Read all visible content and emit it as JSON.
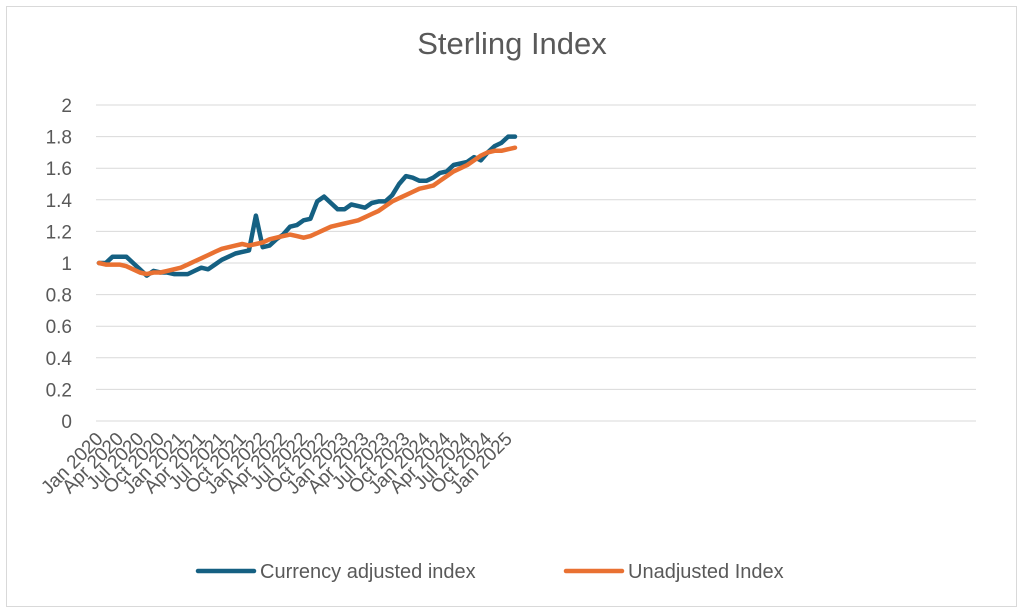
{
  "chart_data": {
    "type": "line",
    "title": "Sterling Index",
    "xlabel": "",
    "ylabel": "",
    "ylim": [
      0,
      2
    ],
    "y_ticks": [
      "0",
      "0.2",
      "0.4",
      "0.6",
      "0.8",
      "1",
      "1.2",
      "1.4",
      "1.6",
      "1.8",
      "2"
    ],
    "grid": "horizontal",
    "legend_position": "bottom",
    "x_tick_labels": [
      "Jan 2020",
      "Apr 2020",
      "Jul 2020",
      "Oct 2020",
      "Jan 2021",
      "Apr 2021",
      "Jul 2021",
      "Oct 2021",
      "Jan 2022",
      "Apr 2022",
      "Jul 2022",
      "Oct 2022",
      "Jan 2023",
      "Apr 2023",
      "Jul 2023",
      "Oct 2023",
      "Jan 2024",
      "Apr 2024",
      "Jul 2024",
      "Oct 2024",
      "Jan 2025"
    ],
    "x_start": "Jan 2020",
    "x_end": "Mar 2025",
    "series": [
      {
        "name": "Currency adjusted index",
        "color": "#156082",
        "values": [
          1.0,
          1.0,
          1.04,
          1.04,
          1.04,
          1.0,
          0.96,
          0.92,
          0.95,
          0.94,
          0.94,
          0.93,
          0.93,
          0.93,
          0.95,
          0.97,
          0.96,
          0.99,
          1.02,
          1.04,
          1.06,
          1.07,
          1.08,
          1.3,
          1.1,
          1.11,
          1.15,
          1.18,
          1.23,
          1.24,
          1.27,
          1.28,
          1.39,
          1.42,
          1.38,
          1.34,
          1.34,
          1.37,
          1.36,
          1.35,
          1.38,
          1.39,
          1.39,
          1.43,
          1.5,
          1.55,
          1.54,
          1.52,
          1.52,
          1.54,
          1.57,
          1.58,
          1.62,
          1.63,
          1.64,
          1.67,
          1.65,
          1.7,
          1.74,
          1.76,
          1.8,
          1.8
        ]
      },
      {
        "name": "Unadjusted Index",
        "color": "#E97132",
        "values": [
          1.0,
          0.99,
          0.99,
          0.99,
          0.98,
          0.96,
          0.94,
          0.93,
          0.94,
          0.94,
          0.95,
          0.96,
          0.97,
          0.99,
          1.01,
          1.03,
          1.05,
          1.07,
          1.09,
          1.1,
          1.11,
          1.12,
          1.11,
          1.12,
          1.13,
          1.15,
          1.16,
          1.17,
          1.18,
          1.17,
          1.16,
          1.17,
          1.19,
          1.21,
          1.23,
          1.24,
          1.25,
          1.26,
          1.27,
          1.29,
          1.31,
          1.33,
          1.36,
          1.39,
          1.41,
          1.43,
          1.45,
          1.47,
          1.48,
          1.49,
          1.52,
          1.55,
          1.58,
          1.6,
          1.62,
          1.65,
          1.68,
          1.7,
          1.71,
          1.71,
          1.72,
          1.73
        ]
      }
    ]
  }
}
